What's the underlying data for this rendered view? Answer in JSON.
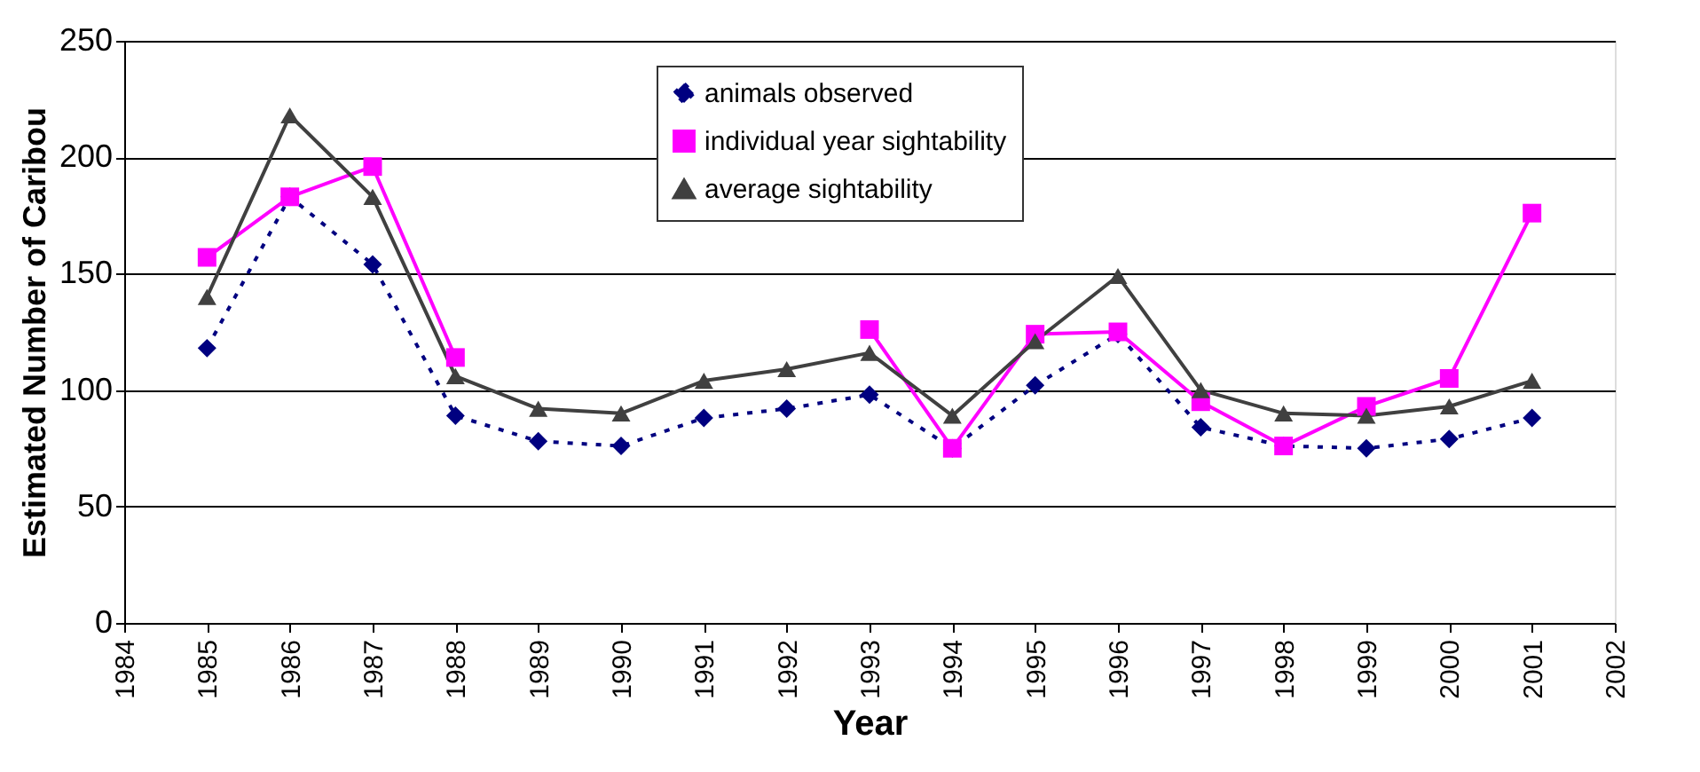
{
  "chart_data": {
    "type": "line",
    "xlabel": "Year",
    "ylabel": "Estimated Number of Caribou",
    "x": [
      1985,
      1986,
      1987,
      1988,
      1989,
      1990,
      1991,
      1992,
      1993,
      1994,
      1995,
      1996,
      1997,
      1998,
      1999,
      2000,
      2001
    ],
    "series": [
      {
        "name": "animals observed",
        "color": "#000080",
        "marker": "diamond",
        "line_style": "dotted",
        "values": [
          118,
          183,
          154,
          89,
          78,
          76,
          88,
          92,
          98,
          75,
          102,
          124,
          84,
          76,
          75,
          79,
          88
        ]
      },
      {
        "name": "individual year sightability",
        "color": "#ff00ff",
        "marker": "square",
        "line_style": "solid",
        "values": [
          157,
          183,
          196,
          114,
          null,
          null,
          null,
          null,
          126,
          75,
          124,
          125,
          95,
          76,
          93,
          105,
          176
        ]
      },
      {
        "name": "average sightability",
        "color": "#404040",
        "marker": "triangle",
        "line_style": "solid",
        "values": [
          140,
          218,
          183,
          106,
          92,
          90,
          104,
          109,
          116,
          89,
          121,
          149,
          100,
          90,
          89,
          93,
          104
        ]
      }
    ],
    "xlim": [
      1984,
      2002
    ],
    "xticks": [
      1984,
      1985,
      1986,
      1987,
      1988,
      1989,
      1990,
      1991,
      1992,
      1993,
      1994,
      1995,
      1996,
      1997,
      1998,
      1999,
      2000,
      2001,
      2002
    ],
    "ylim": [
      0,
      250
    ],
    "yticks": [
      0,
      50,
      100,
      150,
      200,
      250
    ],
    "grid": "y",
    "legend": "top"
  }
}
